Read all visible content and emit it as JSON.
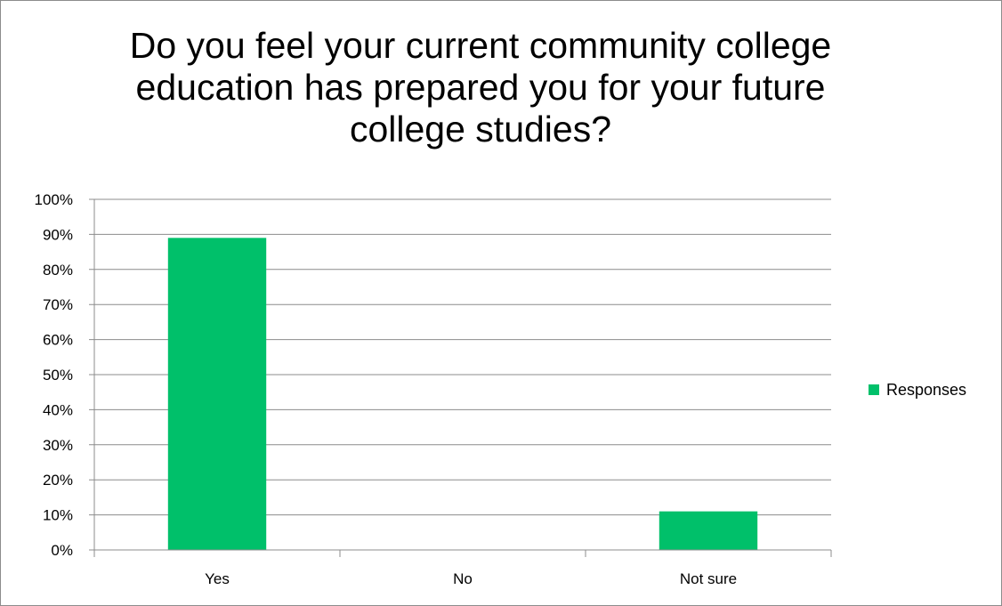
{
  "chart_data": {
    "type": "bar",
    "title": "Do you feel your current community college education has prepared you for your future college studies?",
    "categories": [
      "Yes",
      "No",
      "Not sure"
    ],
    "series": [
      {
        "name": "Responses",
        "values": [
          0.89,
          0.0,
          0.11
        ],
        "color": "#00c06a"
      }
    ],
    "y_tick_labels": [
      "0%",
      "10%",
      "20%",
      "30%",
      "40%",
      "50%",
      "60%",
      "70%",
      "80%",
      "90%",
      "100%"
    ],
    "ylim": [
      0,
      1
    ],
    "xlabel": "",
    "ylabel": "",
    "grid": true,
    "legend": "right"
  }
}
